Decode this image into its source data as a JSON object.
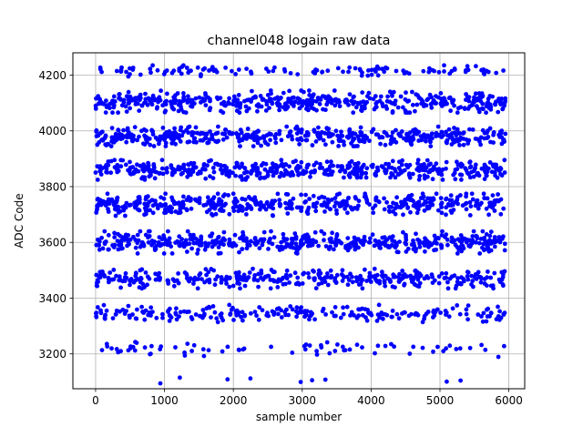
{
  "chart_data": {
    "type": "scatter",
    "title": "channel048 logain raw data",
    "xlabel": "sample number",
    "ylabel": "ADC Code",
    "xlim": [
      -330,
      6230
    ],
    "ylim": [
      3075,
      4280
    ],
    "xticks": [
      0,
      1000,
      2000,
      3000,
      4000,
      5000,
      6000
    ],
    "xtick_labels": [
      "0",
      "1000",
      "2000",
      "3000",
      "4000",
      "5000",
      "6000"
    ],
    "yticks": [
      3200,
      3400,
      3600,
      3800,
      4000,
      4200
    ],
    "ytick_labels": [
      "3200",
      "3400",
      "3600",
      "3800",
      "4000",
      "4200"
    ],
    "grid": true,
    "marker_color": "#0000ff",
    "x_range": [
      0,
      5950
    ],
    "bands": [
      {
        "center": 3108,
        "spread": 7,
        "count": 9
      },
      {
        "center": 3220,
        "spread": 14,
        "count": 75
      },
      {
        "center": 3345,
        "spread": 14,
        "count": 240
      },
      {
        "center": 3470,
        "spread": 16,
        "count": 380
      },
      {
        "center": 3600,
        "spread": 18,
        "count": 480
      },
      {
        "center": 3735,
        "spread": 18,
        "count": 480
      },
      {
        "center": 3860,
        "spread": 16,
        "count": 480
      },
      {
        "center": 3980,
        "spread": 16,
        "count": 480
      },
      {
        "center": 4105,
        "spread": 18,
        "count": 480
      },
      {
        "center": 4215,
        "spread": 9,
        "count": 120
      }
    ]
  }
}
